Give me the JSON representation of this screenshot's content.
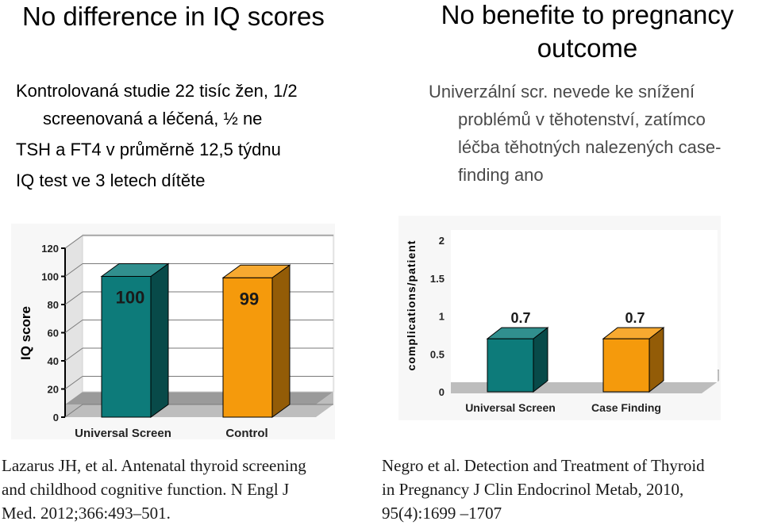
{
  "left_panel": {
    "title": "No difference in IQ scores",
    "bullets": [
      "Kontrolovaná studie 22 tisíc žen, 1/2",
      "screenovaná a léčená, ½ ne",
      "TSH a FT4 v průměrně 12,5 týdnu",
      "IQ test ve 3 letech dítěte"
    ],
    "reference": [
      "Lazarus JH, et al. Antenatal thyroid screening",
      "and childhood cognitive function. N Engl J",
      "Med. 2012;366:493–501."
    ]
  },
  "right_panel": {
    "title_lines": [
      "No benefite to pregnancy",
      "outcome"
    ],
    "bullets": [
      "Univerzální scr. nevede ke snížení",
      "problémů v těhotenství, zatímco",
      "léčba těhotných nalezených case-",
      "finding ano"
    ],
    "reference": [
      "Negro et al. Detection and Treatment of Thyroid",
      "in Pregnancy J Clin Endocrinol Metab, 2010,",
      "95(4):1699 –1707"
    ]
  },
  "colors": {
    "teal": "#0d7b7a",
    "orange": "#f59a0c",
    "text_gray": "#4a4a4a"
  },
  "chart_data": [
    {
      "type": "bar",
      "categories": [
        "Universal Screen",
        "Control"
      ],
      "values": [
        100,
        99
      ],
      "value_labels": [
        "100",
        "99"
      ],
      "ylabel": "IQ score",
      "xlabel": "",
      "ylim": [
        0,
        120
      ],
      "yticks": [
        0,
        20,
        40,
        60,
        80,
        100,
        120
      ],
      "ytick_labels": [
        "0",
        "20",
        "40",
        "60",
        "80",
        "100",
        "120"
      ],
      "colors": [
        "#0d7b7a",
        "#f59a0c"
      ]
    },
    {
      "type": "bar",
      "categories": [
        "Universal Screen",
        "Case Finding"
      ],
      "values": [
        0.7,
        0.7
      ],
      "value_labels": [
        "0.7",
        "0.7"
      ],
      "ylabel": "complications/patient",
      "xlabel": "",
      "ylim": [
        0,
        2
      ],
      "yticks": [
        0,
        0.5,
        1,
        1.5,
        2
      ],
      "ytick_labels": [
        "0",
        "0.5",
        "1",
        "1.5",
        "2"
      ],
      "colors": [
        "#0d7b7a",
        "#f59a0c"
      ]
    }
  ]
}
